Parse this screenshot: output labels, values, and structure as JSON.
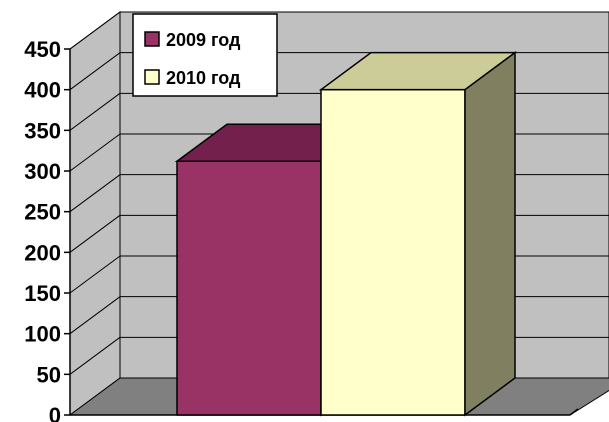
{
  "chart_data": {
    "type": "bar",
    "categories": [
      ""
    ],
    "series": [
      {
        "name": "2009 год",
        "values": [
          312
        ],
        "color": "#993366"
      },
      {
        "name": "2010 год",
        "values": [
          400
        ],
        "color": "#FFFFCC"
      }
    ],
    "title": "",
    "xlabel": "",
    "ylabel": "",
    "ylim": [
      0,
      450
    ],
    "yticks": [
      "0",
      "50",
      "100",
      "150",
      "200",
      "250",
      "300",
      "350",
      "400",
      "450"
    ],
    "grid": true,
    "three_d": true,
    "legend": "top-left",
    "wall_color": "#C0C0C0",
    "floor_color": "#808080"
  }
}
